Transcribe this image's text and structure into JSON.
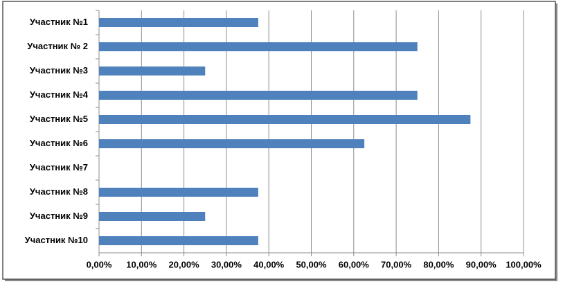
{
  "chart_data": {
    "type": "hbar",
    "categories": [
      "Участник №1",
      "Участник № 2",
      "Участник №3",
      "Участник №4",
      "Участник №5",
      "Участник №6",
      "Участник №7",
      "Участник №8",
      "Участник №9",
      "Участник №10"
    ],
    "values": [
      37.5,
      75,
      25,
      75,
      87.5,
      62.5,
      0,
      37.5,
      25,
      37.5
    ],
    "color": "#4f81bd",
    "xlim": [
      0,
      100
    ],
    "xticks": [
      {
        "value": 0,
        "label": "0,00%"
      },
      {
        "value": 10,
        "label": "10,00%"
      },
      {
        "value": 20,
        "label": "20,00%"
      },
      {
        "value": 30,
        "label": "30,00%"
      },
      {
        "value": 40,
        "label": "40,00%"
      },
      {
        "value": 50,
        "label": "50,00%"
      },
      {
        "value": 60,
        "label": "60,00%"
      },
      {
        "value": 70,
        "label": "70,00%"
      },
      {
        "value": 80,
        "label": "80,00%"
      },
      {
        "value": 90,
        "label": "90,00%"
      },
      {
        "value": 100,
        "label": "100,00%"
      }
    ],
    "grid": true
  }
}
